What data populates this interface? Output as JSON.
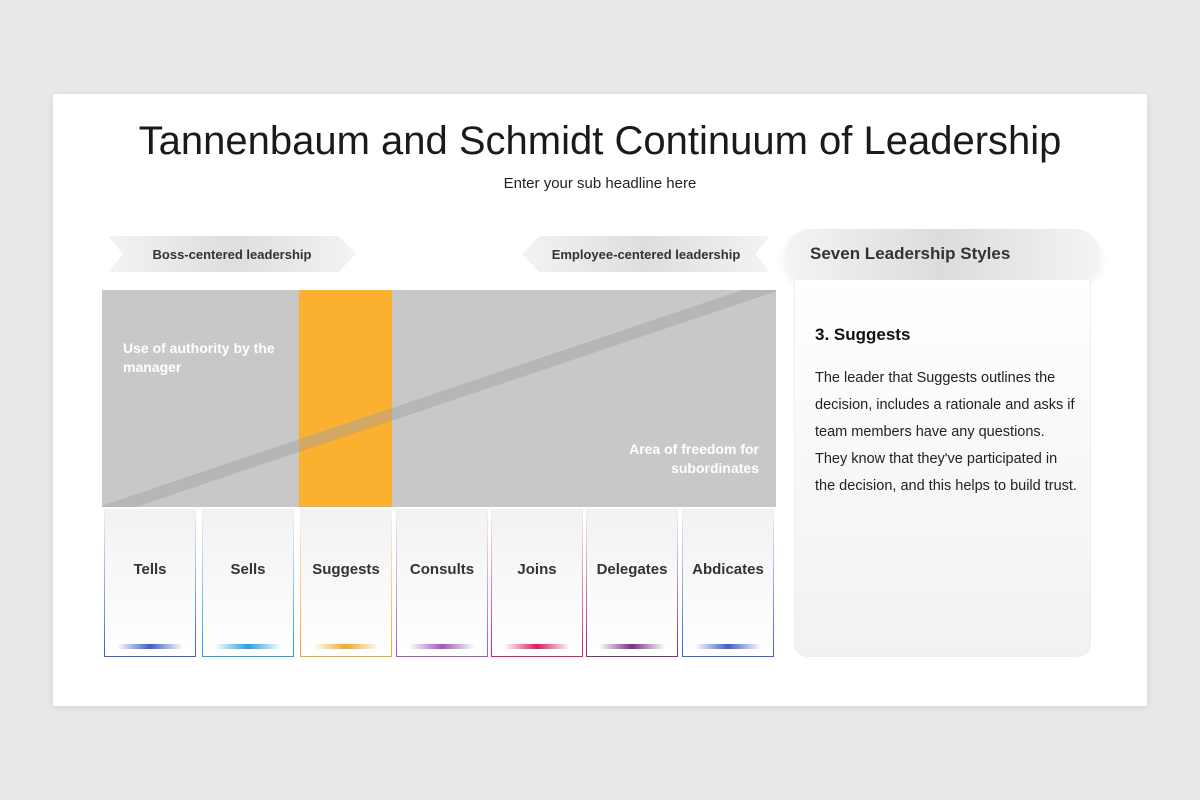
{
  "title": "Tannenbaum and Schmidt Continuum of Leadership",
  "subtitle": "Enter your sub headline here",
  "arrows": {
    "left": "Boss-centered  leadership",
    "right": "Employee-centered  leadership"
  },
  "area": {
    "authority_label": "Use of authority by the manager",
    "freedom_label": "Area of freedom for subordinates",
    "highlight_color": "#fbb030"
  },
  "styles": [
    {
      "label": "Tells",
      "color": "#3a5fd6"
    },
    {
      "label": "Sells",
      "color": "#1ea0f0"
    },
    {
      "label": "Suggests",
      "color": "#f5a623"
    },
    {
      "label": "Consults",
      "color": "#a455c0"
    },
    {
      "label": "Joins",
      "color": "#e8175d"
    },
    {
      "label": "Delegates",
      "color": "#7b2d8a"
    },
    {
      "label": "Abdicates",
      "color": "#3a5fd6"
    }
  ],
  "selected_index": 2,
  "panel": {
    "header": "Seven Leadership Styles",
    "heading": "3. Suggests",
    "body": "The leader that Suggests outlines the decision, includes a rationale and asks if team members have any questions. They know that they've participated in the decision, and this helps to build trust."
  }
}
